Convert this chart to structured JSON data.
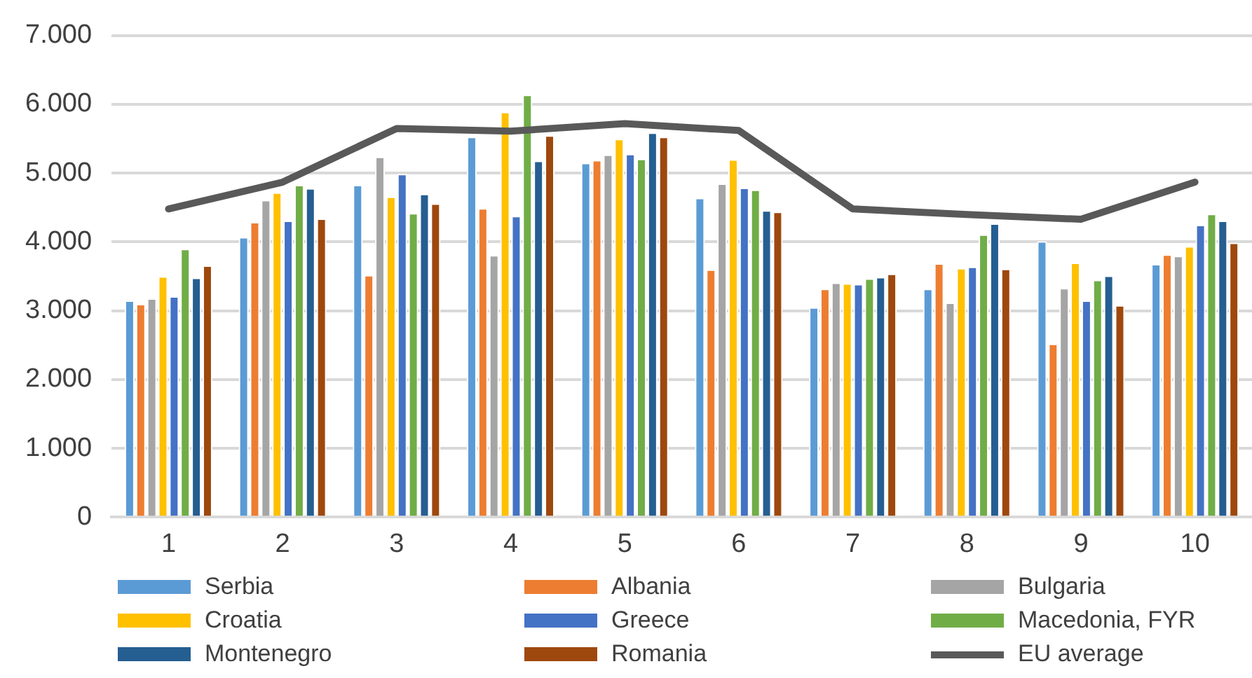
{
  "chart_data": {
    "type": "bar",
    "categories": [
      "1",
      "2",
      "3",
      "4",
      "5",
      "6",
      "7",
      "8",
      "9",
      "10"
    ],
    "series": [
      {
        "name": "Serbia",
        "color": "#5b9bd5",
        "values": [
          3150,
          4070,
          4830,
          5530,
          5150,
          4640,
          3050,
          3320,
          4010,
          3680
        ]
      },
      {
        "name": "Albania",
        "color": "#ed7d31",
        "values": [
          3100,
          4290,
          3520,
          4490,
          5190,
          3600,
          3320,
          3690,
          2520,
          3820
        ]
      },
      {
        "name": "Bulgaria",
        "color": "#a5a5a5",
        "values": [
          3180,
          4610,
          5240,
          3810,
          5270,
          4850,
          3410,
          3120,
          3330,
          3800
        ]
      },
      {
        "name": "Croatia",
        "color": "#ffc000",
        "values": [
          3500,
          4720,
          4660,
          5890,
          5500,
          5200,
          3400,
          3620,
          3700,
          3940
        ]
      },
      {
        "name": "Greece",
        "color": "#4472c4",
        "values": [
          3210,
          4310,
          4990,
          4380,
          5280,
          4790,
          3390,
          3640,
          3150,
          4250
        ]
      },
      {
        "name": "Macedonia, FYR",
        "color": "#70ad47",
        "values": [
          3900,
          4830,
          4420,
          6140,
          5210,
          4760,
          3470,
          4110,
          3450,
          4410
        ]
      },
      {
        "name": "Montenegro",
        "color": "#255e91",
        "values": [
          3480,
          4780,
          4700,
          5180,
          5590,
          4460,
          3490,
          4270,
          3510,
          4310
        ]
      },
      {
        "name": "Romania",
        "color": "#9e480e",
        "values": [
          3660,
          4340,
          4560,
          5550,
          5530,
          4440,
          3540,
          3610,
          3080,
          3990
        ]
      },
      {
        "name": "EU average",
        "type": "line",
        "color": "#595959",
        "marker": "none",
        "values": [
          4480,
          4870,
          5650,
          5610,
          5720,
          5620,
          4480,
          4400,
          4330,
          4870
        ]
      }
    ],
    "ylim": [
      0,
      7000
    ],
    "yticks": [
      {
        "value": 0,
        "label": "0"
      },
      {
        "value": 1000,
        "label": "1.000"
      },
      {
        "value": 2000,
        "label": "2.000"
      },
      {
        "value": 3000,
        "label": "3.000"
      },
      {
        "value": 4000,
        "label": "4.000"
      },
      {
        "value": 5000,
        "label": "5.000"
      },
      {
        "value": 6000,
        "label": "6.000"
      },
      {
        "value": 7000,
        "label": "7.000"
      }
    ],
    "grid": "y",
    "legend": "bottom"
  }
}
